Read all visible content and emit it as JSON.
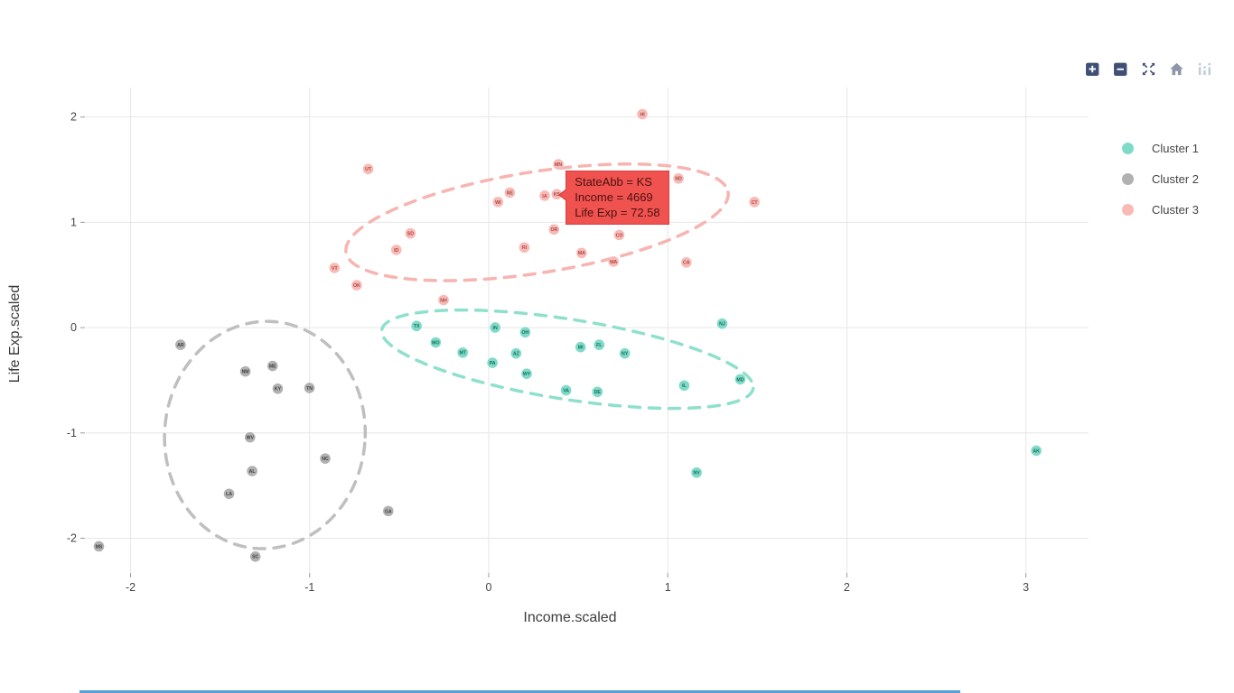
{
  "modebar": {
    "buttons": [
      {
        "name": "zoom-in",
        "title": "Zoom in"
      },
      {
        "name": "zoom-out",
        "title": "Zoom out"
      },
      {
        "name": "autoscale",
        "title": "Autoscale"
      },
      {
        "name": "reset-axes",
        "title": "Reset axes"
      },
      {
        "name": "plotly-logo",
        "title": "Produced with Plotly"
      }
    ],
    "dark_color": "#3f4f75",
    "mid_color": "#8c96a8",
    "light_color": "#c5ccd8"
  },
  "legend": {
    "items": [
      {
        "label": "Cluster 1",
        "color": "#7fdbc8"
      },
      {
        "label": "Cluster 2",
        "color": "#b1b1b1"
      },
      {
        "label": "Cluster 3",
        "color": "#f9bab6"
      }
    ]
  },
  "tooltip": {
    "lines": [
      "StateAbb = KS",
      "Income = 4669",
      "Life Exp = 72.58"
    ],
    "anchor_state": "KS",
    "bg": "#f0524f",
    "border": "#d8403d",
    "text_color": "#4a1210"
  },
  "chart_data": {
    "type": "scatter",
    "title": "",
    "xlabel": "Income.scaled",
    "ylabel": "Life Exp.scaled",
    "xlim": [
      -2.25,
      3.35
    ],
    "ylim": [
      -2.33,
      2.28
    ],
    "xticks": [
      -2,
      -1,
      0,
      1,
      2,
      3
    ],
    "yticks": [
      -2,
      -1,
      0,
      1,
      2
    ],
    "grid": true,
    "grid_color": "#e6e6e6",
    "tick_color": "#444444",
    "legend_position": "right",
    "series": [
      {
        "name": "Cluster 1",
        "color": "#7fdbc8",
        "label_color": "#156c5d",
        "points": [
          {
            "s": "TX",
            "x": -0.403,
            "y": 0.016
          },
          {
            "s": "IN",
            "x": 0.036,
            "y": 0.001
          },
          {
            "s": "OH",
            "x": 0.204,
            "y": -0.044
          },
          {
            "s": "MO",
            "x": -0.296,
            "y": -0.141
          },
          {
            "s": "MT",
            "x": -0.145,
            "y": -0.237
          },
          {
            "s": "AZ",
            "x": 0.153,
            "y": -0.245
          },
          {
            "s": "PA",
            "x": 0.021,
            "y": -0.334
          },
          {
            "s": "MI",
            "x": 0.513,
            "y": -0.185
          },
          {
            "s": "FL",
            "x": 0.617,
            "y": -0.163
          },
          {
            "s": "NY",
            "x": 0.76,
            "y": -0.245
          },
          {
            "s": "WY",
            "x": 0.212,
            "y": -0.438
          },
          {
            "s": "VA",
            "x": 0.432,
            "y": -0.595
          },
          {
            "s": "DE",
            "x": 0.607,
            "y": -0.61
          },
          {
            "s": "IL",
            "x": 1.092,
            "y": -0.55
          },
          {
            "s": "MD",
            "x": 1.405,
            "y": -0.491
          },
          {
            "s": "NJ",
            "x": 1.304,
            "y": 0.038
          },
          {
            "s": "NV",
            "x": 1.161,
            "y": -1.377
          },
          {
            "s": "AK",
            "x": 3.058,
            "y": -1.168
          }
        ]
      },
      {
        "name": "Cluster 2",
        "color": "#b1b1b1",
        "label_color": "#3d3d3d",
        "points": [
          {
            "s": "AR",
            "x": -1.721,
            "y": -0.163
          },
          {
            "s": "ME",
            "x": -1.207,
            "y": -0.364
          },
          {
            "s": "NM",
            "x": -1.359,
            "y": -0.416
          },
          {
            "s": "KY",
            "x": -1.178,
            "y": -0.58
          },
          {
            "s": "TN",
            "x": -1.001,
            "y": -0.573
          },
          {
            "s": "WV",
            "x": -1.333,
            "y": -1.042
          },
          {
            "s": "NC",
            "x": -0.913,
            "y": -1.243
          },
          {
            "s": "AL",
            "x": -1.321,
            "y": -1.362
          },
          {
            "s": "LA",
            "x": -1.45,
            "y": -1.578
          },
          {
            "s": "GA",
            "x": -0.561,
            "y": -1.742
          },
          {
            "s": "MS",
            "x": -2.177,
            "y": -2.077
          },
          {
            "s": "SC",
            "x": -1.303,
            "y": -2.174
          }
        ]
      },
      {
        "name": "Cluster 3",
        "color": "#f9bab6",
        "label_color": "#a84742",
        "points": [
          {
            "s": "HI",
            "x": 0.858,
            "y": 2.027
          },
          {
            "s": "MN",
            "x": 0.389,
            "y": 1.551
          },
          {
            "s": "UT",
            "x": -0.673,
            "y": 1.506
          },
          {
            "s": "ND",
            "x": 1.06,
            "y": 1.416
          },
          {
            "s": "NE",
            "x": 0.118,
            "y": 1.282
          },
          {
            "s": "KS",
            "x": 0.38,
            "y": 1.267
          },
          {
            "s": "IA",
            "x": 0.313,
            "y": 1.253
          },
          {
            "s": "WI",
            "x": 0.052,
            "y": 1.193
          },
          {
            "s": "CT",
            "x": 1.484,
            "y": 1.193
          },
          {
            "s": "OR",
            "x": 0.365,
            "y": 0.932
          },
          {
            "s": "SD",
            "x": -0.437,
            "y": 0.895
          },
          {
            "s": "CO",
            "x": 0.729,
            "y": 0.88
          },
          {
            "s": "RI",
            "x": 0.199,
            "y": 0.761
          },
          {
            "s": "ID",
            "x": -0.516,
            "y": 0.738
          },
          {
            "s": "MA",
            "x": 0.519,
            "y": 0.709
          },
          {
            "s": "WA",
            "x": 0.697,
            "y": 0.627
          },
          {
            "s": "CA",
            "x": 1.104,
            "y": 0.619
          },
          {
            "s": "VT",
            "x": -0.861,
            "y": 0.567
          },
          {
            "s": "OK",
            "x": -0.737,
            "y": 0.403
          },
          {
            "s": "NH",
            "x": -0.252,
            "y": 0.262
          }
        ]
      }
    ],
    "ellipses": [
      {
        "cluster": "Cluster 1",
        "cx": 0.44,
        "cy": -0.3,
        "rx": 1.05,
        "ry": 0.38,
        "angle_deg": -15,
        "color": "#8ee0cd"
      },
      {
        "cluster": "Cluster 2",
        "cx": -1.25,
        "cy": -1.02,
        "rx": 0.56,
        "ry": 1.08,
        "angle_deg": -8,
        "color": "#bfbfbf"
      },
      {
        "cluster": "Cluster 3",
        "cx": 0.27,
        "cy": 1.0,
        "rx": 1.08,
        "ry": 0.48,
        "angle_deg": 15,
        "color": "#f7b4b0"
      }
    ]
  }
}
